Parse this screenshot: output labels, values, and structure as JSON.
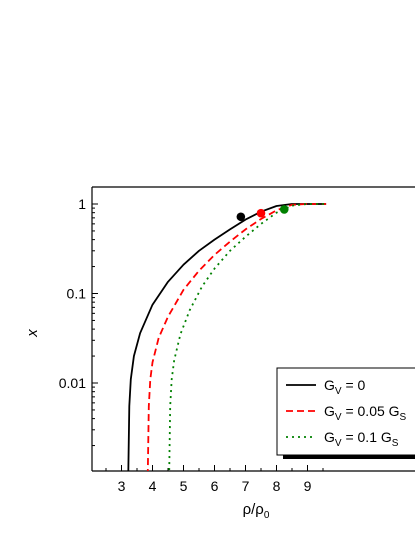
{
  "chart_data": {
    "type": "line",
    "xlabel": {
      "main": "ρ/ρ",
      "sub": "0"
    },
    "ylabel": "x",
    "x_ticks": [
      "3",
      "4",
      "5",
      "6",
      "7",
      "8",
      "9"
    ],
    "x_tick_values": [
      3,
      4,
      5,
      6,
      7,
      8,
      9
    ],
    "y_ticks": [
      "0.01",
      "0.1",
      "1"
    ],
    "y_tick_values": [
      0.01,
      0.1,
      1
    ],
    "y_scale": "log",
    "xlim": [
      2.5,
      9.6
    ],
    "ylim": [
      0.001,
      1.5
    ],
    "legend": {
      "position": "lower-right",
      "entries": [
        {
          "pre": "G",
          "sub": "V",
          "post": " = 0",
          "post_sub": ""
        },
        {
          "pre": "G",
          "sub": "V",
          "post": " = 0.05 G",
          "post_sub": "S"
        },
        {
          "pre": "G",
          "sub": "V",
          "post": " = 0.1 G",
          "post_sub": "S"
        }
      ]
    },
    "series": [
      {
        "color": "#000000",
        "dash": "solid",
        "rho_c": 3.2,
        "x": [
          3.22,
          3.25,
          3.3,
          3.4,
          3.6,
          4.0,
          4.5,
          5.0,
          5.5,
          6.0,
          6.5,
          7.0,
          7.5,
          8.0,
          8.5,
          9.0,
          9.6
        ],
        "y": [
          0.001,
          0.0055,
          0.011,
          0.02,
          0.036,
          0.075,
          0.135,
          0.21,
          0.3,
          0.4,
          0.52,
          0.67,
          0.82,
          0.95,
          1.0,
          1.0,
          1.0
        ],
        "marker": {
          "x": 6.85,
          "y": 0.72,
          "color": "#000000"
        }
      },
      {
        "color": "#ff0000",
        "dash": "dashed",
        "rho_c": 3.83,
        "x": [
          3.85,
          3.88,
          3.93,
          4.0,
          4.2,
          4.5,
          5.0,
          5.5,
          6.0,
          6.5,
          7.0,
          7.5,
          8.0,
          8.5,
          9.0,
          9.6
        ],
        "y": [
          0.001,
          0.0055,
          0.011,
          0.017,
          0.032,
          0.055,
          0.11,
          0.18,
          0.27,
          0.38,
          0.52,
          0.68,
          0.85,
          0.98,
          1.0,
          1.0
        ],
        "marker": {
          "x": 7.5,
          "y": 0.79,
          "color": "#ff0000"
        }
      },
      {
        "color": "#008000",
        "dash": "dotted",
        "rho_c": 4.52,
        "x": [
          4.54,
          4.57,
          4.62,
          4.7,
          4.9,
          5.2,
          5.6,
          6.0,
          6.5,
          7.0,
          7.5,
          8.0,
          8.5,
          9.0,
          9.6
        ],
        "y": [
          0.001,
          0.0055,
          0.011,
          0.018,
          0.035,
          0.065,
          0.12,
          0.19,
          0.3,
          0.43,
          0.6,
          0.8,
          0.96,
          1.0,
          1.0
        ],
        "marker": {
          "x": 8.25,
          "y": 0.87,
          "color": "#008000"
        }
      }
    ]
  }
}
